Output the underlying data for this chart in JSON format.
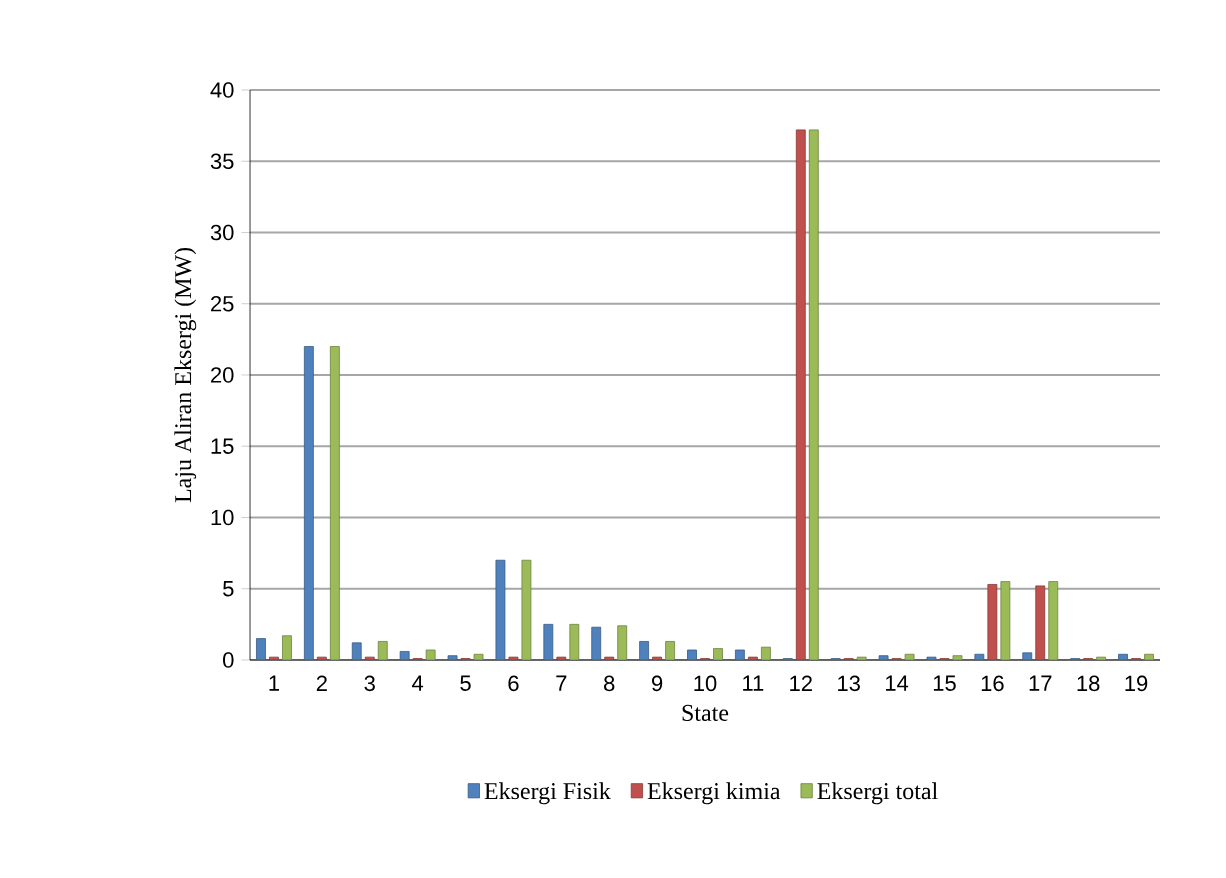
{
  "chart_data": {
    "type": "bar",
    "xlabel": "State",
    "ylabel": "Laju Aliran Eksergi (MW)",
    "categories": [
      "1",
      "2",
      "3",
      "4",
      "5",
      "6",
      "7",
      "8",
      "9",
      "10",
      "11",
      "12",
      "13",
      "14",
      "15",
      "16",
      "17",
      "18",
      "19"
    ],
    "series": [
      {
        "name": "Eksergi Fisik",
        "color": "#4f81bd",
        "values": [
          1.5,
          22,
          1.2,
          0.6,
          0.3,
          7,
          2.5,
          2.3,
          1.3,
          0.7,
          0.7,
          0.1,
          0.1,
          0.3,
          0.2,
          0.4,
          0.5,
          0.1,
          0.4
        ]
      },
      {
        "name": "Eksergi kimia",
        "color": "#c0504d",
        "values": [
          0.2,
          0.2,
          0.2,
          0.1,
          0.1,
          0.2,
          0.2,
          0.2,
          0.2,
          0.1,
          0.2,
          37.2,
          0.1,
          0.1,
          0.1,
          5.3,
          5.2,
          0.1,
          0.1
        ]
      },
      {
        "name": "Eksergi total",
        "color": "#9bbb59",
        "values": [
          1.7,
          22,
          1.3,
          0.7,
          0.4,
          7,
          2.5,
          2.4,
          1.3,
          0.8,
          0.9,
          37.2,
          0.2,
          0.4,
          0.3,
          5.5,
          5.5,
          0.2,
          0.4
        ]
      }
    ],
    "ylim": [
      0,
      40
    ],
    "yticks": [
      0,
      5,
      10,
      15,
      20,
      25,
      30,
      35,
      40
    ],
    "grid": "y",
    "legend": "bottom"
  }
}
